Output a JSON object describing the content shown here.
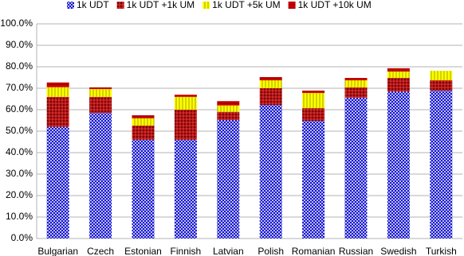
{
  "chart_data": {
    "type": "bar",
    "stacked": true,
    "categories": [
      "Bulgarian",
      "Czech",
      "Estonian",
      "Finnish",
      "Latvian",
      "Polish",
      "Romanian",
      "Russian",
      "Swedish",
      "Turkish"
    ],
    "series": [
      {
        "name": "1k UDT",
        "color": "#0000cc",
        "values": [
          52,
          58.5,
          46,
          46,
          55.2,
          62.2,
          54.8,
          65.6,
          68.5,
          68.9
        ]
      },
      {
        "name": "1k UDT +1k UM",
        "color": "#800000",
        "values": [
          14,
          7.5,
          6.6,
          14,
          3.8,
          7.8,
          5.9,
          4.8,
          6.3,
          4.8
        ]
      },
      {
        "name": "1k UDT +5k UM",
        "color": "#ffff00",
        "values": [
          4.5,
          3.6,
          3.4,
          6,
          3,
          3.7,
          7.1,
          3.3,
          3,
          4.4
        ]
      },
      {
        "name": "1k UDT +10k UM",
        "color": "#cc0000",
        "values": [
          2.2,
          0.8,
          1.4,
          1,
          2,
          1.5,
          1.1,
          1.1,
          1.5,
          0
        ]
      }
    ],
    "ylim": [
      0,
      100
    ],
    "yticks": [
      {
        "value": 0,
        "label": "0.0%"
      },
      {
        "value": 10,
        "label": "10.0%"
      },
      {
        "value": 20,
        "label": "20.0%"
      },
      {
        "value": 30,
        "label": "30.0%"
      },
      {
        "value": 40,
        "label": "40.0%"
      },
      {
        "value": 50,
        "label": "50.0%"
      },
      {
        "value": 60,
        "label": "60.0%"
      },
      {
        "value": 70,
        "label": "70.0%"
      },
      {
        "value": 80,
        "label": "80.0%"
      },
      {
        "value": 90,
        "label": "90.0%"
      },
      {
        "value": 100,
        "label": "100.0%"
      }
    ],
    "grid": true,
    "legend": "top"
  }
}
